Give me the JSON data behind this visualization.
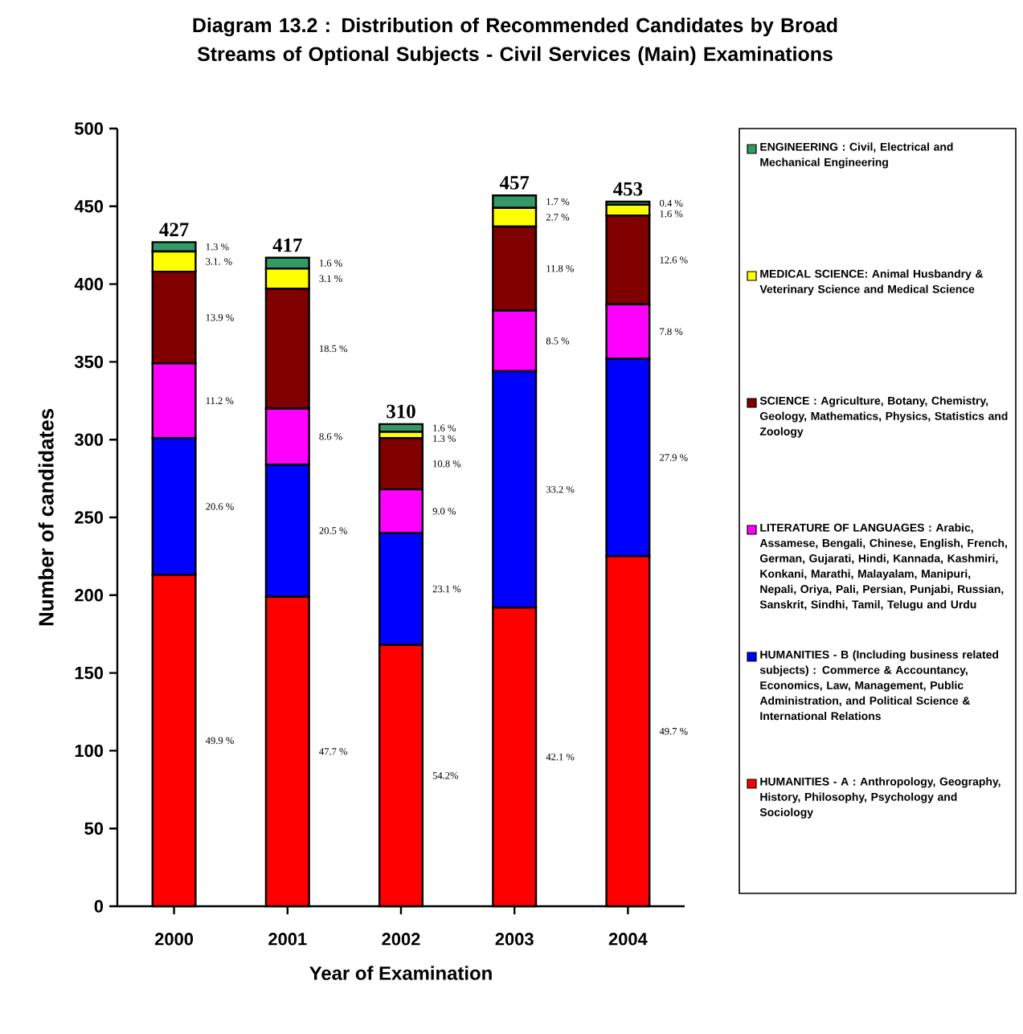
{
  "chart_data": {
    "type": "bar",
    "stacked": true,
    "title": "Diagram 13.2 : Distribution of Recommended Candidates by Broad Streams of  Optional Subjects - Civil Services (Main) Examinations",
    "xlabel": "Year of Examination",
    "ylabel": "Number of candidates",
    "categories": [
      "2000",
      "2001",
      "2002",
      "2003",
      "2004"
    ],
    "ylim": [
      0,
      500
    ],
    "yticks": [
      0,
      50,
      100,
      150,
      200,
      250,
      300,
      350,
      400,
      450,
      500
    ],
    "legend": "right",
    "totals": [
      "427",
      "417",
      "310",
      "457",
      "453"
    ],
    "series": [
      {
        "name": "HUMANITIES - A  : Anthropology, Geography, History,  Philosophy, Psychology and Sociology",
        "color": "#ff0000",
        "values": [
          213,
          199,
          168,
          192,
          225
        ]
      },
      {
        "name": "HUMANITIES - B (Including business related subjects)  : Commerce & Accountancy, Economics, Law, Management, Public Administration, and Political Science & International Relations",
        "color": "#0000ff",
        "values": [
          88,
          85,
          72,
          152,
          127
        ]
      },
      {
        "name": "LITERATURE OF LANGUAGES : Arabic, Assamese, Bengali, Chinese, English, French, German, Gujarati, Hindi, Kannada, Kashmiri, Konkani, Marathi, Malayalam, Manipuri, Nepali, Oriya, Pali, Persian, Punjabi, Russian, Sanskrit, Sindhi, Tamil, Telugu and Urdu",
        "color": "#ff00ff",
        "values": [
          48,
          36,
          28,
          39,
          35
        ]
      },
      {
        "name": "SCIENCE  : Agriculture, Botany, Chemistry, Geology, Mathematics, Physics, Statistics and Zoology",
        "color": "#800000",
        "values": [
          59,
          77,
          33,
          54,
          57
        ]
      },
      {
        "name": "MEDICAL SCIENCE: Animal Husbandry & Veterinary Science and Medical Science",
        "color": "#ffff00",
        "values": [
          13,
          13,
          4,
          12,
          7
        ]
      },
      {
        "name": "ENGINEERING :  Civil, Electrical and Mechanical Engineering",
        "color": "#339966",
        "values": [
          6,
          7,
          5,
          8,
          2
        ]
      }
    ],
    "annotations": [
      "1.3 %",
      "3.1. %",
      "13.9 %",
      "11.2 %",
      "20.6 %",
      "49.9 %",
      "1.6 %",
      "3.1  %",
      "18.5 %",
      "8.6 %",
      "20.5 %",
      "47.7 %",
      "1.6 %",
      "1.3 %",
      "10.8 %",
      "9.0 %",
      "23.1 %",
      "54.2%",
      "1.7 %",
      "2.7 %",
      "11.8 %",
      "8.5 %",
      "33.2 %",
      "42.1 %",
      "0.4 %",
      "1.6 %",
      "12.6 %",
      "7.8 %",
      "27.9 %",
      "49.7 %"
    ]
  }
}
